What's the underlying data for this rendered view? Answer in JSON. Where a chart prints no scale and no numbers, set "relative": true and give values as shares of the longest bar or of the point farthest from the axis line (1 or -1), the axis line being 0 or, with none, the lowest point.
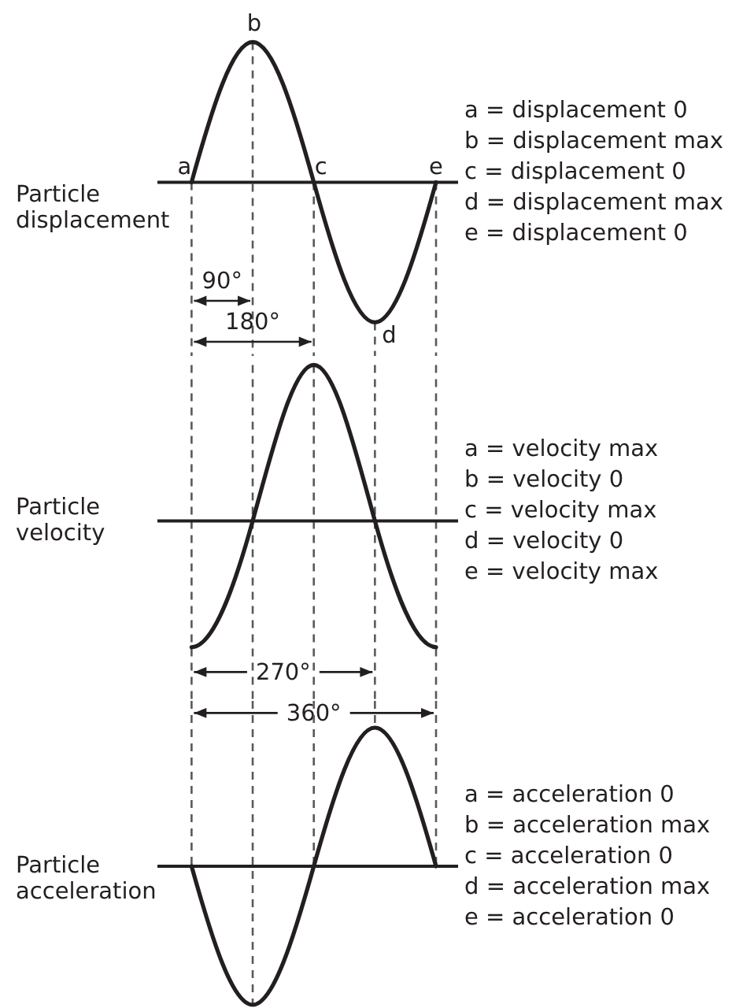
{
  "chart_data": [
    {
      "type": "line",
      "ylabel": "Particle displacement",
      "relative": true,
      "categories": [
        null,
        null,
        null,
        null,
        null
      ],
      "values": [
        0,
        1,
        0,
        -1,
        0
      ],
      "color": "#231f20",
      "grid": "x",
      "annotations": [
        {
          "text": "a",
          "y": 0
        },
        {
          "text": "b",
          "y": 1
        },
        {
          "text": "c",
          "y": 0
        },
        {
          "text": "d",
          "y": -1
        },
        {
          "text": "e",
          "y": 0
        },
        {
          "text": "90°"
        },
        {
          "text": "180°"
        },
        "a = displacement 0",
        "b = displacement max",
        "c = displacement 0",
        "d = displacement max",
        "e = displacement 0"
      ]
    },
    {
      "type": "line",
      "ylabel": "Particle velocity",
      "relative": true,
      "categories": [
        null,
        null,
        null,
        null,
        null
      ],
      "values": [
        -0.81,
        0,
        1,
        0,
        -0.81
      ],
      "color": "#231f20",
      "grid": "x",
      "annotations": [
        {
          "text": "270°"
        },
        {
          "text": "360°"
        },
        "a = velocity max",
        "b = velocity 0",
        "c = velocity max",
        "d = velocity 0",
        "e = velocity max"
      ]
    },
    {
      "type": "line",
      "ylabel": "Particle acceleration",
      "relative": true,
      "categories": [
        null,
        null,
        null,
        null,
        null
      ],
      "values": [
        0,
        -1,
        0,
        1,
        0
      ],
      "color": "#231f20",
      "grid": "x",
      "annotations": [
        "a = acceleration 0",
        "b = acceleration max",
        "c = acceleration 0",
        "d = acceleration max",
        "e = acceleration 0"
      ]
    }
  ]
}
